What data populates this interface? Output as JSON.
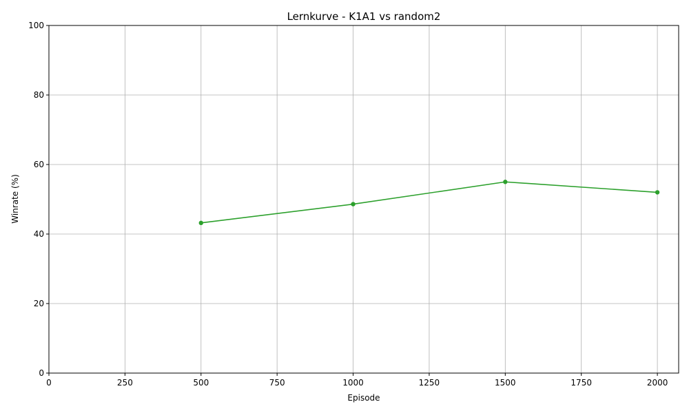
{
  "chart_data": {
    "type": "line",
    "title": "Lernkurve - K1A1 vs random2",
    "xlabel": "Episode",
    "ylabel": "Winrate (%)",
    "xlim": [
      0,
      2070
    ],
    "ylim": [
      0,
      100
    ],
    "xticks": [
      0,
      250,
      500,
      750,
      1000,
      1250,
      1500,
      1750,
      2000
    ],
    "yticks": [
      0,
      20,
      40,
      60,
      80,
      100
    ],
    "grid": true,
    "series": [
      {
        "color": "#2ca02c",
        "x": [
          500,
          1000,
          1500,
          2000
        ],
        "y": [
          43.2,
          48.6,
          55.0,
          52.0
        ]
      }
    ]
  }
}
